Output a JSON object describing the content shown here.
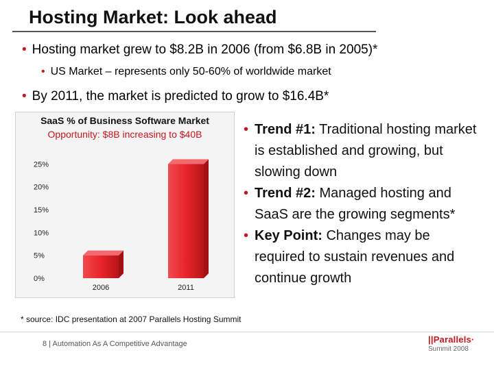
{
  "slide": {
    "title": "Hosting Market: Look ahead",
    "bullets": [
      "Hosting market grew to $8.2B in 2006 (from $6.8B in 2005)*",
      "US Market – represents only 50-60% of worldwide market",
      "By 2011, the market is predicted to grow to $16.4B*"
    ],
    "right_bullets": [
      {
        "bold": "Trend #1:",
        "text": " Traditional hosting market is established and growing, but slowing down"
      },
      {
        "bold": "Trend #2:",
        "text": " Managed hosting and SaaS are the growing segments*"
      },
      {
        "bold": "Key Point:",
        "text": " Changes may be required to sustain revenues and continue growth"
      }
    ],
    "footnote": "* source: IDC presentation at 2007 Parallels Hosting Summit",
    "footer": "8  |  Automation As A Competitive Advantage",
    "logo": {
      "bars": "||",
      "name": "Parallels",
      "mark": "·",
      "sub": "Summit 2008"
    },
    "colors": {
      "accent": "#c4161c",
      "bar": "#e8242b"
    }
  },
  "chart_data": {
    "type": "bar",
    "title": "SaaS % of Business Software Market",
    "subtitle": "Opportunity: $8B increasing to $40B",
    "categories": [
      "2006",
      "2011"
    ],
    "values": [
      5,
      25
    ],
    "ytick_labels": [
      "0%",
      "5%",
      "10%",
      "15%",
      "20%",
      "25%"
    ],
    "yticks": [
      0,
      5,
      10,
      15,
      20,
      25
    ],
    "ylim": [
      0,
      27
    ],
    "grid": false
  }
}
